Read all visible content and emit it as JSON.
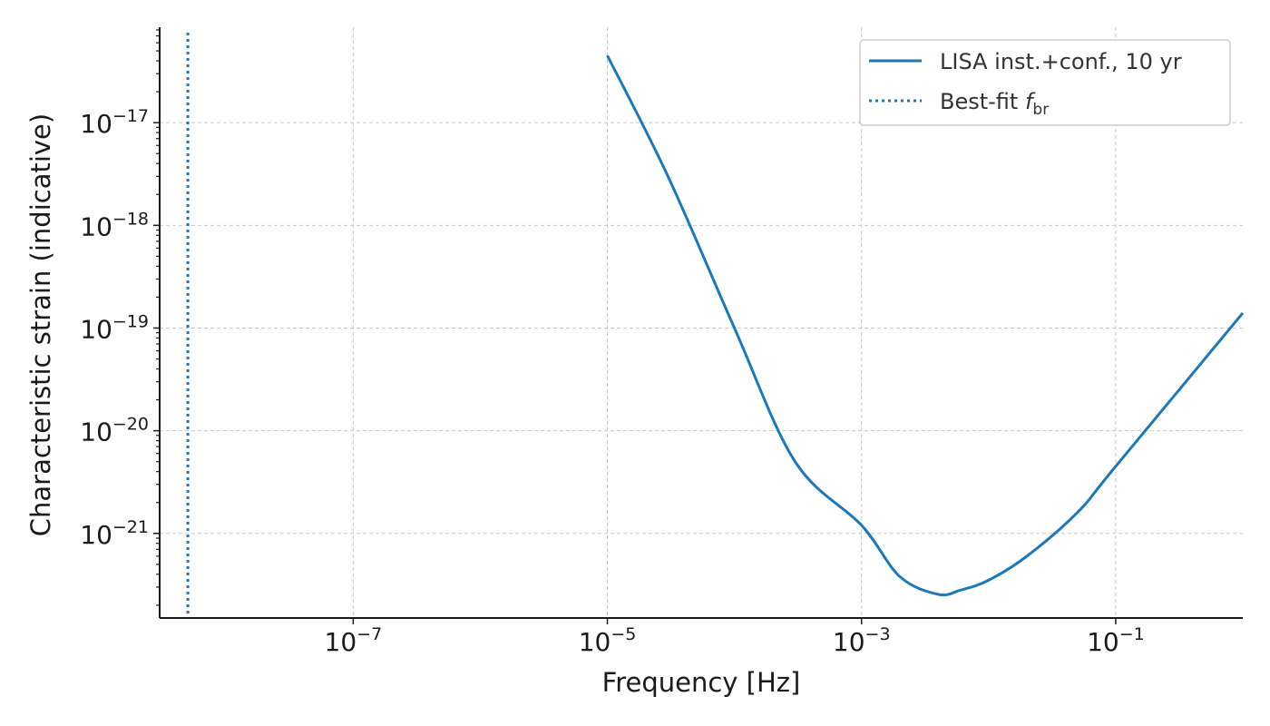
{
  "chart_data": {
    "type": "line",
    "title": "",
    "xlabel": "Frequency [Hz]",
    "ylabel": "Characteristic strain (indicative)",
    "x_scale": "log",
    "y_scale": "log",
    "xlim": [
      3e-09,
      1.0
    ],
    "ylim": [
      1.5e-22,
      8.5e-17
    ],
    "x_ticks": [
      {
        "value": 1e-07,
        "base": "10",
        "exp": "−7"
      },
      {
        "value": 1e-05,
        "base": "10",
        "exp": "−5"
      },
      {
        "value": 0.001,
        "base": "10",
        "exp": "−3"
      },
      {
        "value": 0.1,
        "base": "10",
        "exp": "−1"
      }
    ],
    "y_ticks": [
      {
        "value": 1e-17,
        "base": "10",
        "exp": "−17"
      },
      {
        "value": 1e-18,
        "base": "10",
        "exp": "−18"
      },
      {
        "value": 1e-19,
        "base": "10",
        "exp": "−19"
      },
      {
        "value": 1e-20,
        "base": "10",
        "exp": "−20"
      },
      {
        "value": 1e-21,
        "base": "10",
        "exp": "−21"
      }
    ],
    "grid": true,
    "legend_position": "top-right",
    "series": [
      {
        "name": "LISA inst.+conf., 10 yr",
        "style": "solid",
        "color": "#1f77b4",
        "x": [
          1e-05,
          3e-05,
          0.0001,
          0.0003,
          0.001,
          0.002,
          0.004,
          0.006,
          0.01,
          0.02,
          0.05,
          0.1,
          1.0
        ],
        "y": [
          4.5e-17,
          3e-18,
          1e-19,
          5e-21,
          1.2e-21,
          3.8e-22,
          2.55e-22,
          2.8e-22,
          3.5e-22,
          6e-22,
          1.6e-21,
          4.5e-21,
          1.4e-19
        ]
      },
      {
        "name": "Best-fit f_br",
        "label_main": "Best-fit ",
        "label_italic": "f",
        "label_sub": "br",
        "style": "dotted",
        "type": "vline",
        "color": "#1f77b4",
        "x_value": 5e-09
      }
    ]
  }
}
